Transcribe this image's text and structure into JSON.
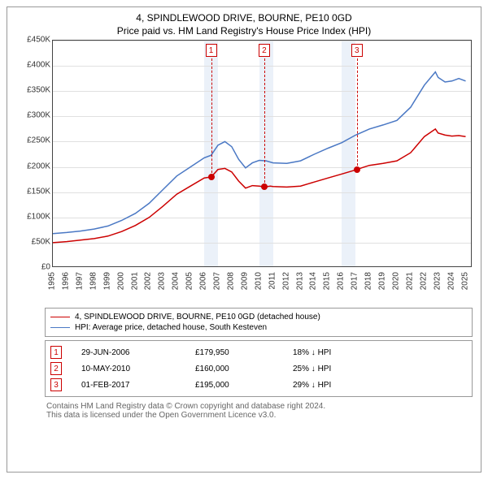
{
  "title": "4, SPINDLEWOOD DRIVE, BOURNE, PE10 0GD",
  "subtitle": "Price paid vs. HM Land Registry's House Price Index (HPI)",
  "chart": {
    "type": "line",
    "background_color": "#ffffff",
    "grid_color": "#e0e0e0",
    "axis_color": "#444444",
    "band_color": "#dde7f5",
    "ylim": [
      0,
      450000
    ],
    "ytick_step": 50000,
    "yticks": [
      "£0",
      "£50K",
      "£100K",
      "£150K",
      "£200K",
      "£250K",
      "£300K",
      "£350K",
      "£400K",
      "£450K"
    ],
    "xlim": [
      1995,
      2025.5
    ],
    "xticks": [
      1995,
      1996,
      1997,
      1998,
      1999,
      2000,
      2001,
      2002,
      2003,
      2004,
      2005,
      2006,
      2007,
      2008,
      2009,
      2010,
      2011,
      2012,
      2013,
      2014,
      2015,
      2016,
      2017,
      2018,
      2019,
      2020,
      2021,
      2022,
      2023,
      2024,
      2025
    ],
    "tick_fontsize": 10,
    "title_fontsize": 12,
    "line_width": 1.5,
    "series": [
      {
        "label": "4, SPINDLEWOOD DRIVE, BOURNE, PE10 0GD (detached house)",
        "color": "#cc0000",
        "x": [
          1995,
          1996,
          1997,
          1998,
          1999,
          2000,
          2001,
          2002,
          2003,
          2004,
          2005,
          2006,
          2006.5,
          2007,
          2007.5,
          2008,
          2008.5,
          2009,
          2009.5,
          2010,
          2010.36,
          2010.8,
          2011,
          2012,
          2013,
          2014,
          2015,
          2016,
          2017,
          2017.09,
          2018,
          2019,
          2020,
          2021,
          2022,
          2022.8,
          2023,
          2023.5,
          2024,
          2024.5,
          2025
        ],
        "y": [
          50000,
          52000,
          55000,
          58000,
          63000,
          72000,
          84000,
          100000,
          122000,
          146000,
          162000,
          178000,
          179950,
          195000,
          197000,
          190000,
          172000,
          158000,
          163000,
          162000,
          160000,
          162000,
          161000,
          160000,
          162000,
          170000,
          178000,
          186000,
          194000,
          195000,
          203000,
          207000,
          212000,
          228000,
          260000,
          275000,
          267000,
          263000,
          261000,
          262000,
          260000
        ]
      },
      {
        "label": "HPI: Average price, detached house, South Kesteven",
        "color": "#4a78c4",
        "x": [
          1995,
          1996,
          1997,
          1998,
          1999,
          2000,
          2001,
          2002,
          2003,
          2004,
          2005,
          2006,
          2006.5,
          2007,
          2007.5,
          2008,
          2008.5,
          2009,
          2009.5,
          2010,
          2010.5,
          2011,
          2012,
          2013,
          2014,
          2015,
          2016,
          2017,
          2018,
          2019,
          2020,
          2021,
          2022,
          2022.8,
          2023,
          2023.5,
          2024,
          2024.5,
          2025
        ],
        "y": [
          68000,
          70000,
          73000,
          77000,
          83000,
          94000,
          108000,
          128000,
          155000,
          182000,
          200000,
          218000,
          223000,
          243000,
          250000,
          240000,
          215000,
          198000,
          208000,
          213000,
          212000,
          208000,
          207000,
          212000,
          225000,
          237000,
          248000,
          263000,
          275000,
          283000,
          292000,
          318000,
          362000,
          388000,
          377000,
          368000,
          370000,
          375000,
          370000
        ]
      }
    ],
    "sale_markers": [
      {
        "n": "1",
        "x": 2006.5,
        "y": 179950
      },
      {
        "n": "2",
        "x": 2010.36,
        "y": 160000
      },
      {
        "n": "3",
        "x": 2017.09,
        "y": 195000
      }
    ],
    "bands": [
      {
        "from": 2006,
        "to": 2007
      },
      {
        "from": 2010,
        "to": 2011
      },
      {
        "from": 2016,
        "to": 2017
      }
    ]
  },
  "legend": {
    "items": [
      {
        "color": "#cc0000",
        "label": "4, SPINDLEWOOD DRIVE, BOURNE, PE10 0GD (detached house)"
      },
      {
        "color": "#4a78c4",
        "label": "HPI: Average price, detached house, South Kesteven"
      }
    ]
  },
  "sales": [
    {
      "n": "1",
      "date": "29-JUN-2006",
      "price": "£179,950",
      "hpi": "18% ↓ HPI"
    },
    {
      "n": "2",
      "date": "10-MAY-2010",
      "price": "£160,000",
      "hpi": "25% ↓ HPI"
    },
    {
      "n": "3",
      "date": "01-FEB-2017",
      "price": "£195,000",
      "hpi": "29% ↓ HPI"
    }
  ],
  "footer": {
    "line1": "Contains HM Land Registry data © Crown copyright and database right 2024.",
    "line2": "This data is licensed under the Open Government Licence v3.0."
  }
}
